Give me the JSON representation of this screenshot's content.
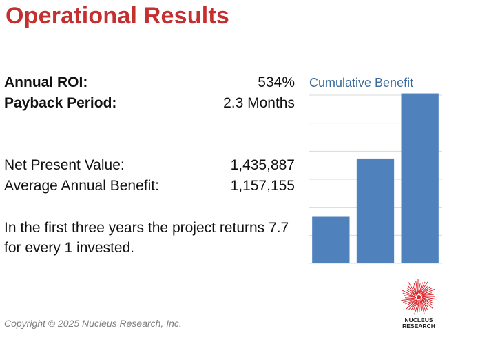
{
  "title": "Operational Results",
  "metrics": {
    "annual_roi": {
      "label": "Annual ROI:",
      "value": "534%"
    },
    "payback": {
      "label": "Payback Period:",
      "value": "2.3 Months"
    },
    "npv": {
      "label": "Net Present Value:",
      "value": "1,435,887"
    },
    "avg_benefit": {
      "label": "Average Annual Benefit:",
      "value": "1,157,155"
    }
  },
  "statement": "In the first three years the project returns 7.7 for every 1 invested.",
  "chart_data": {
    "type": "bar",
    "title": "Cumulative Benefit",
    "categories": [
      "",
      "",
      ""
    ],
    "values": [
      1.66,
      3.74,
      6.06
    ],
    "ylim": [
      0,
      6
    ],
    "grid": true,
    "color": "#4f81bd"
  },
  "copyright": "Copyright © 2025 Nucleus Research, Inc.",
  "logo": {
    "line1": "NUCLEUS",
    "line2": "RESEARCH",
    "color": "#d9262b"
  }
}
